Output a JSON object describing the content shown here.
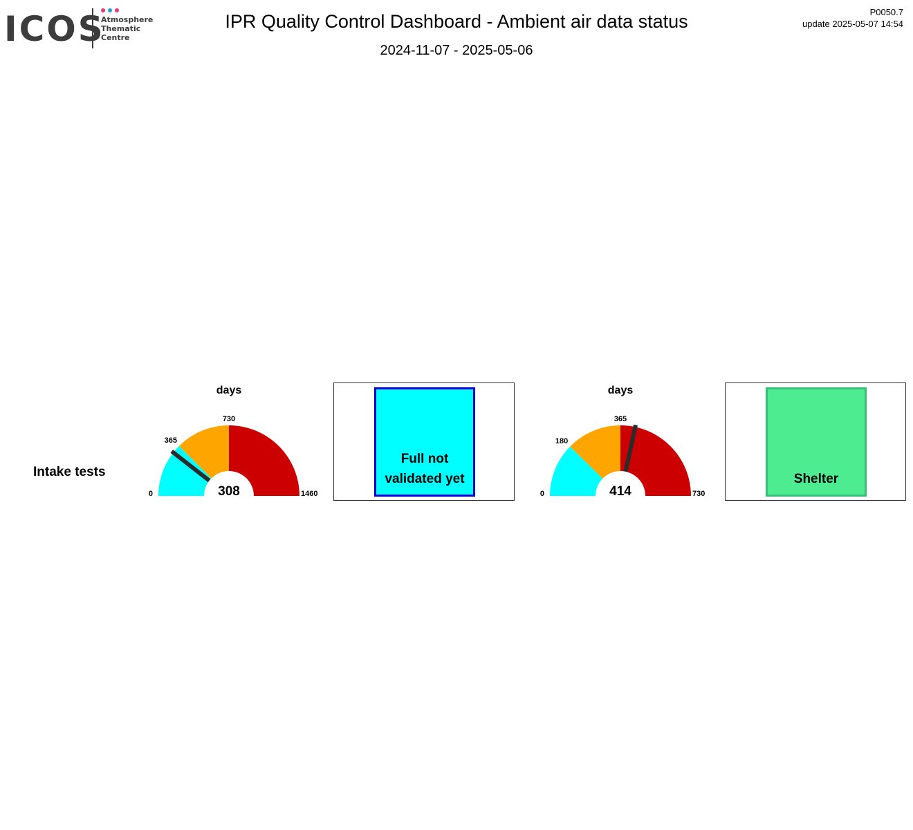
{
  "header": {
    "logo": {
      "wordmark": "ICOS",
      "lines": [
        "Atmosphere",
        "Thematic",
        "Centre"
      ],
      "dot_colors": [
        "#e6397b",
        "#2f9ad6",
        "#e6397b"
      ]
    },
    "title": "IPR  Quality Control Dashboard - Ambient air data status",
    "period": "2024-11-07 - 2025-05-06",
    "version": "P0050.7",
    "update": "update  2025-05-07 14:54"
  },
  "rows": [
    {
      "label": "Intake tests",
      "gauges": [
        {
          "unit_label": "days",
          "min": 0,
          "max": 1460,
          "thresholds": [
            365,
            730
          ],
          "tick_labels": [
            "0",
            "365",
            "730",
            "1460"
          ],
          "value": 308,
          "value_label": "308",
          "band_colors": [
            "#00ffff",
            "#ffa500",
            "#cc0000"
          ]
        },
        {
          "unit_label": "days",
          "min": 0,
          "max": 730,
          "thresholds": [
            180,
            365
          ],
          "tick_labels": [
            "0",
            "180",
            "365",
            "730"
          ],
          "value": 414,
          "value_label": "414",
          "band_colors": [
            "#00ffff",
            "#ffa500",
            "#cc0000"
          ]
        }
      ],
      "status_boxes": [
        {
          "lines": [
            "Full not",
            "validated yet"
          ],
          "fill": "#00ffff",
          "border": "#0000dd"
        },
        {
          "lines": [
            "Shelter"
          ],
          "fill": "#4eec90",
          "border": "#38c07a"
        }
      ]
    }
  ]
}
